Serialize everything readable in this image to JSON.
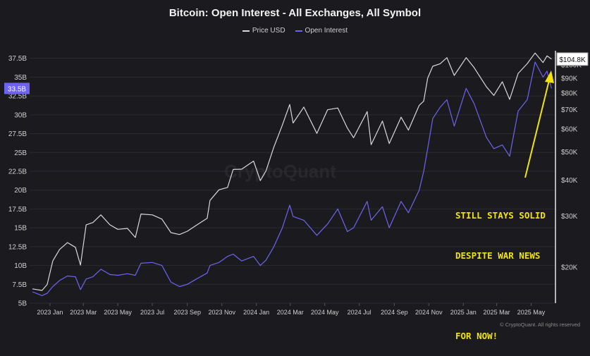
{
  "title": "Bitcoin: Open Interest - All Exchanges, All Symbol",
  "legend": {
    "price_label": "Price USD",
    "oi_label": "Open Interest"
  },
  "colors": {
    "background": "#1b1b1f",
    "price_line": "#d9d9d9",
    "oi_line": "#6e63f0",
    "annotation": "#f2e30f",
    "grid": "#2a2a30",
    "axis_text": "#cfcfcf"
  },
  "watermark": "CryptoQuant",
  "annotation": {
    "line1": "STILL STAYS SOLID",
    "line2": "DESPITE WAR NEWS",
    "line3": "FOR NOW!"
  },
  "footer": "© CryptoQuant. All rights reserved",
  "chart_data": {
    "type": "line",
    "x_ticks": [
      "2023 Jan",
      "2023 Mar",
      "2023 May",
      "2023 Jul",
      "2023 Sep",
      "2023 Nov",
      "2024 Jan",
      "2024 Mar",
      "2024 May",
      "2024 Jul",
      "2024 Sep",
      "2024 Nov",
      "2025 Jan",
      "2025 Mar",
      "2025 May"
    ],
    "y_left": {
      "label": "",
      "ticks": [
        "5B",
        "7.5B",
        "10B",
        "12.5B",
        "15B",
        "17.5B",
        "20B",
        "22.5B",
        "25B",
        "27.5B",
        "30B",
        "32.5B",
        "35B",
        "37.5B"
      ],
      "tick_values": [
        5,
        7.5,
        10,
        12.5,
        15,
        17.5,
        20,
        22.5,
        25,
        27.5,
        30,
        32.5,
        35,
        37.5
      ],
      "range": [
        5,
        38.5
      ],
      "current_label": "33.5B",
      "current_value": 33.5
    },
    "y_right": {
      "label": "",
      "scale": "log",
      "ticks": [
        "$20K",
        "$30K",
        "$40K",
        "$50K",
        "$60K",
        "$70K",
        "$80K",
        "$90K",
        "$100K"
      ],
      "tick_values": [
        20000,
        30000,
        40000,
        50000,
        60000,
        70000,
        80000,
        90000,
        100000
      ],
      "range": [
        15000,
        112000
      ],
      "current_label": "$104.8K",
      "current_value": 104800
    },
    "series": [
      {
        "name": "Price USD",
        "axis": "right",
        "points": [
          [
            "2022-12-15",
            16800
          ],
          [
            "2023-01-01",
            16600
          ],
          [
            "2023-01-10",
            17400
          ],
          [
            "2023-01-20",
            21000
          ],
          [
            "2023-02-01",
            23000
          ],
          [
            "2023-02-15",
            24300
          ],
          [
            "2023-03-01",
            23400
          ],
          [
            "2023-03-10",
            20300
          ],
          [
            "2023-03-20",
            28000
          ],
          [
            "2023-04-01",
            28500
          ],
          [
            "2023-04-15",
            30300
          ],
          [
            "2023-05-01",
            28000
          ],
          [
            "2023-05-15",
            27000
          ],
          [
            "2023-06-01",
            27200
          ],
          [
            "2023-06-15",
            25300
          ],
          [
            "2023-06-25",
            30500
          ],
          [
            "2023-07-15",
            30300
          ],
          [
            "2023-08-01",
            29300
          ],
          [
            "2023-08-17",
            26300
          ],
          [
            "2023-09-01",
            25900
          ],
          [
            "2023-09-15",
            26600
          ],
          [
            "2023-10-01",
            27900
          ],
          [
            "2023-10-20",
            29500
          ],
          [
            "2023-10-25",
            34000
          ],
          [
            "2023-11-10",
            37000
          ],
          [
            "2023-11-25",
            37700
          ],
          [
            "2023-12-05",
            43500
          ],
          [
            "2023-12-20",
            43600
          ],
          [
            "2024-01-10",
            46500
          ],
          [
            "2024-01-22",
            39800
          ],
          [
            "2024-02-01",
            43000
          ],
          [
            "2024-02-15",
            52000
          ],
          [
            "2024-03-01",
            62000
          ],
          [
            "2024-03-14",
            73000
          ],
          [
            "2024-03-20",
            63000
          ],
          [
            "2024-04-08",
            71500
          ],
          [
            "2024-05-01",
            58000
          ],
          [
            "2024-05-20",
            70000
          ],
          [
            "2024-06-07",
            71000
          ],
          [
            "2024-06-24",
            60500
          ],
          [
            "2024-07-05",
            56000
          ],
          [
            "2024-07-29",
            69000
          ],
          [
            "2024-08-05",
            53000
          ],
          [
            "2024-08-25",
            64000
          ],
          [
            "2024-09-06",
            53500
          ],
          [
            "2024-09-27",
            66000
          ],
          [
            "2024-10-10",
            59500
          ],
          [
            "2024-10-29",
            72500
          ],
          [
            "2024-11-06",
            75000
          ],
          [
            "2024-11-13",
            90000
          ],
          [
            "2024-11-22",
            99000
          ],
          [
            "2024-12-05",
            101000
          ],
          [
            "2024-12-17",
            106000
          ],
          [
            "2024-12-30",
            92000
          ],
          [
            "2025-01-20",
            106000
          ],
          [
            "2025-02-03",
            98000
          ],
          [
            "2025-02-25",
            84000
          ],
          [
            "2025-03-10",
            78500
          ],
          [
            "2025-03-25",
            87500
          ],
          [
            "2025-04-07",
            76000
          ],
          [
            "2025-04-22",
            93500
          ],
          [
            "2025-05-08",
            101000
          ],
          [
            "2025-05-22",
            110000
          ],
          [
            "2025-06-05",
            102000
          ],
          [
            "2025-06-12",
            107500
          ],
          [
            "2025-06-20",
            104800
          ]
        ]
      },
      {
        "name": "Open Interest",
        "axis": "left",
        "points": [
          [
            "2022-12-15",
            6.5
          ],
          [
            "2023-01-01",
            6.0
          ],
          [
            "2023-01-10",
            6.3
          ],
          [
            "2023-01-20",
            7.2
          ],
          [
            "2023-02-01",
            8.0
          ],
          [
            "2023-02-15",
            8.6
          ],
          [
            "2023-03-01",
            8.5
          ],
          [
            "2023-03-10",
            6.8
          ],
          [
            "2023-03-20",
            8.2
          ],
          [
            "2023-04-01",
            8.5
          ],
          [
            "2023-04-15",
            9.5
          ],
          [
            "2023-05-01",
            8.8
          ],
          [
            "2023-05-15",
            8.7
          ],
          [
            "2023-06-01",
            8.9
          ],
          [
            "2023-06-15",
            8.7
          ],
          [
            "2023-06-25",
            10.3
          ],
          [
            "2023-07-15",
            10.4
          ],
          [
            "2023-08-01",
            10.0
          ],
          [
            "2023-08-17",
            7.8
          ],
          [
            "2023-09-01",
            7.2
          ],
          [
            "2023-09-15",
            7.5
          ],
          [
            "2023-10-01",
            8.2
          ],
          [
            "2023-10-20",
            9.0
          ],
          [
            "2023-10-25",
            10.0
          ],
          [
            "2023-11-10",
            10.4
          ],
          [
            "2023-11-25",
            11.2
          ],
          [
            "2023-12-05",
            11.5
          ],
          [
            "2023-12-20",
            10.6
          ],
          [
            "2024-01-10",
            11.2
          ],
          [
            "2024-01-22",
            10.0
          ],
          [
            "2024-02-01",
            10.7
          ],
          [
            "2024-02-15",
            12.5
          ],
          [
            "2024-03-01",
            15.0
          ],
          [
            "2024-03-14",
            18.0
          ],
          [
            "2024-03-20",
            16.5
          ],
          [
            "2024-04-08",
            16.0
          ],
          [
            "2024-05-01",
            14.0
          ],
          [
            "2024-05-20",
            15.5
          ],
          [
            "2024-06-07",
            17.5
          ],
          [
            "2024-06-24",
            14.5
          ],
          [
            "2024-07-05",
            15.0
          ],
          [
            "2024-07-29",
            18.5
          ],
          [
            "2024-08-05",
            16.0
          ],
          [
            "2024-08-25",
            17.8
          ],
          [
            "2024-09-06",
            15.0
          ],
          [
            "2024-09-27",
            18.5
          ],
          [
            "2024-10-10",
            17.0
          ],
          [
            "2024-10-29",
            20.0
          ],
          [
            "2024-11-06",
            22.5
          ],
          [
            "2024-11-13",
            25.5
          ],
          [
            "2024-11-22",
            29.5
          ],
          [
            "2024-12-05",
            31.0
          ],
          [
            "2024-12-17",
            32.0
          ],
          [
            "2024-12-30",
            28.5
          ],
          [
            "2025-01-20",
            33.5
          ],
          [
            "2025-02-03",
            31.5
          ],
          [
            "2025-02-25",
            27.0
          ],
          [
            "2025-03-10",
            25.5
          ],
          [
            "2025-03-25",
            26.0
          ],
          [
            "2025-04-07",
            24.5
          ],
          [
            "2025-04-22",
            30.5
          ],
          [
            "2025-05-08",
            32.0
          ],
          [
            "2025-05-22",
            37.0
          ],
          [
            "2025-06-05",
            35.0
          ],
          [
            "2025-06-12",
            35.8
          ],
          [
            "2025-06-20",
            33.5
          ]
        ]
      }
    ],
    "grid": true,
    "legend_position": "top-center"
  }
}
